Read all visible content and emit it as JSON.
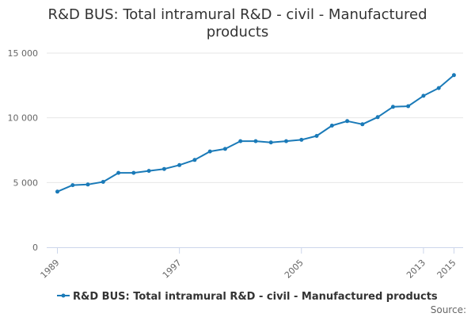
{
  "chart_data": {
    "type": "line",
    "title_lines": [
      "R&D BUS: Total intramural R&D - civil - Manufactured",
      "products"
    ],
    "x": [
      1989,
      1990,
      1991,
      1992,
      1993,
      1994,
      1995,
      1996,
      1997,
      1998,
      1999,
      2000,
      2001,
      2002,
      2003,
      2004,
      2005,
      2006,
      2007,
      2008,
      2009,
      2010,
      2011,
      2012,
      2013,
      2014,
      2015
    ],
    "series": [
      {
        "name": "R&D BUS: Total intramural R&D - civil - Manufactured products",
        "color": "#1a7ab8",
        "values": [
          4300,
          4800,
          4850,
          5050,
          5750,
          5750,
          5900,
          6050,
          6350,
          6750,
          7400,
          7600,
          8200,
          8200,
          8100,
          8200,
          8300,
          8600,
          9400,
          9750,
          9500,
          10050,
          10850,
          10900,
          11700,
          12300,
          13300
        ]
      }
    ],
    "x_tick_labels": [
      "1989",
      "1997",
      "2005",
      "2013",
      "2015"
    ],
    "x_tick_values": [
      1989,
      1997,
      2005,
      2013,
      2015
    ],
    "y_tick_labels": [
      "0",
      "5 000",
      "10 000",
      "15 000"
    ],
    "y_tick_values": [
      0,
      5000,
      10000,
      15000
    ],
    "ylim": [
      0,
      15000
    ],
    "grid": "horizontal",
    "legend_position": "bottom-center",
    "credits": "Source:"
  }
}
